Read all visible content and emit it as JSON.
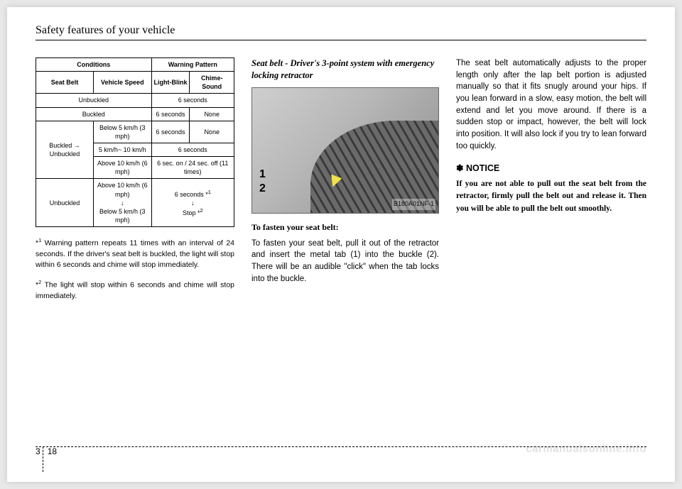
{
  "header": {
    "title": "Safety features of your vehicle"
  },
  "table": {
    "head": {
      "conditions": "Conditions",
      "warning": "Warning Pattern",
      "seatbelt": "Seat Belt",
      "speed": "Vehicle Speed",
      "light": "Light-Blink",
      "sound": "Chime-Sound"
    },
    "rows": {
      "r1_cond": "Unbuckled",
      "r1_warn": "6 seconds",
      "r2_cond": "Buckled",
      "r2_light": "6 seconds",
      "r2_sound": "None",
      "r3_state": "Buckled → Unbuckled",
      "r3_speed_a": "Below 5 km/h (3 mph)",
      "r3_light_a": "6 seconds",
      "r3_sound_a": "None",
      "r3_speed_b": "5 km/h~ 10 km/h",
      "r3_warn_b": "6 seconds",
      "r3_speed_c": "Above 10 km/h (6 mph)",
      "r3_warn_c": "6 sec. on / 24 sec. off (11 times)",
      "r4_state": "Unbuckled",
      "r4_speed_top": "Above 10 km/h (6 mph)",
      "r4_arrow": "↓",
      "r4_speed_bot": "Below 5 km/h (3 mph)",
      "r4_warn_top": "6 seconds *",
      "r4_warn_top_sup": "1",
      "r4_warn_mid": "↓",
      "r4_warn_bot": "Stop *",
      "r4_warn_bot_sup": "2"
    }
  },
  "footnotes": {
    "f1_marker": "*",
    "f1_sup": "1",
    "f1_text": " Warning pattern repeats 11 times with an interval of 24 seconds. If the driver's seat belt is buckled, the light will stop within 6 seconds and chime will stop immediately.",
    "f2_marker": "*",
    "f2_sup": "2",
    "f2_text": " The light will stop within 6 seconds and chime will stop immediately."
  },
  "col2": {
    "title": "Seat belt - Driver's 3-point system with emergency locking retractor",
    "figure": {
      "callout1": "1",
      "callout2": "2",
      "code": "B180A01NF-1"
    },
    "fastenTitle": "To fasten your seat belt:",
    "fastenText": "To fasten your seat belt, pull it out of the retractor and insert the metal tab (1) into the buckle (2). There will be an audible \"click\" when the tab locks into the buckle."
  },
  "col3": {
    "para": "The seat belt automatically adjusts to the proper length only after the lap belt portion is adjusted manually so that it fits snugly around your hips. If you lean forward in a slow, easy motion, the belt will extend and let you move around. If there is a sudden stop or impact, however, the belt will lock into position. It will also lock if you try to lean forward too quickly.",
    "notice_icon": "✽",
    "notice_head": " NOTICE",
    "notice_body": "If you are not able to pull out the seat belt from the retractor, firmly pull the belt out and release it. Then you will be able to pull the belt out smoothly."
  },
  "footer": {
    "section": "3",
    "page": "18"
  },
  "watermark": "carmanualsonline.info"
}
